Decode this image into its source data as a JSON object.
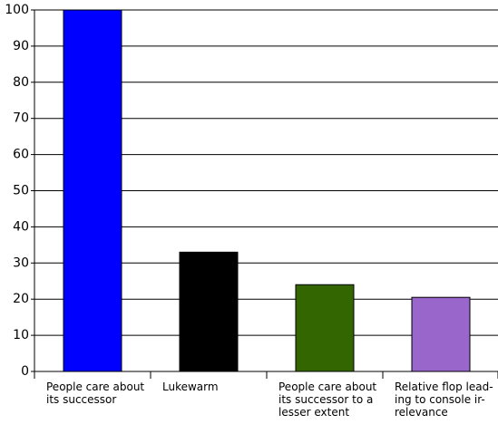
{
  "chart_data": {
    "type": "bar",
    "categories": [
      "People care about\nits successor",
      "Lukewarm",
      "People care about\nits successor to a\nlesser extent",
      "Relative flop lead-\ning to console ir-\nrelevance"
    ],
    "values": [
      100,
      33,
      24,
      20.5
    ],
    "colors": [
      "#0000ff",
      "#000000",
      "#336600",
      "#9966cc"
    ],
    "ylim": [
      0,
      100
    ],
    "yticks": [
      0,
      10,
      20,
      30,
      40,
      50,
      60,
      70,
      80,
      90,
      100
    ],
    "grid": true
  }
}
